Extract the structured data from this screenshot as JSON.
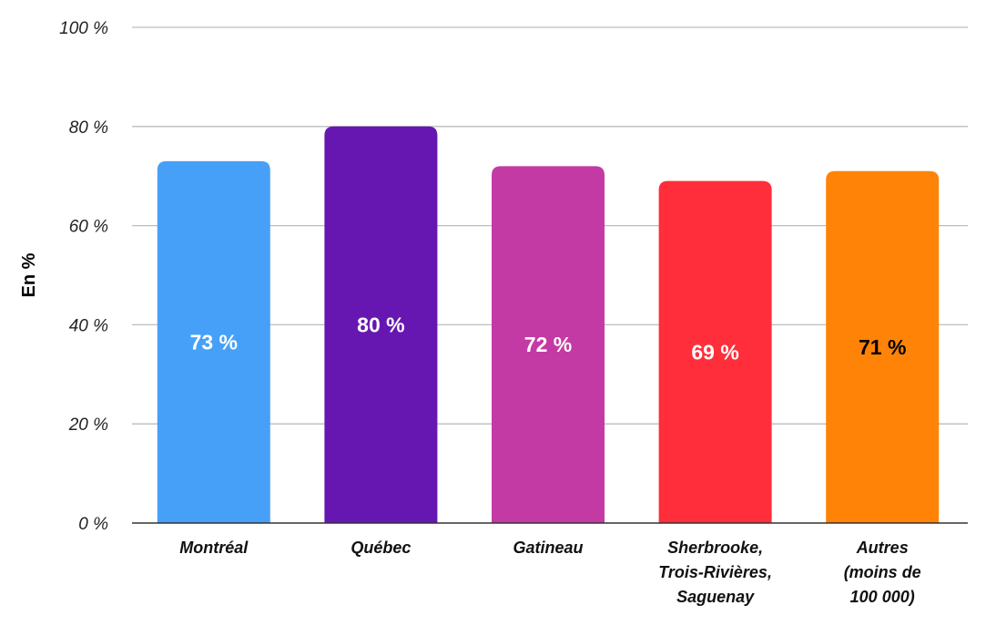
{
  "chart_data": {
    "type": "bar",
    "ylabel": "En %",
    "ylim": [
      0,
      100
    ],
    "yticks": [
      {
        "value": 0,
        "label": "0 %"
      },
      {
        "value": 20,
        "label": "20 %"
      },
      {
        "value": 40,
        "label": "40 %"
      },
      {
        "value": 60,
        "label": "60 %"
      },
      {
        "value": 80,
        "label": "80 %"
      },
      {
        "value": 100,
        "label": "100 %"
      }
    ],
    "grid": true,
    "categories": [
      [
        "Montréal"
      ],
      [
        "Québec"
      ],
      [
        "Gatineau"
      ],
      [
        "Sherbrooke,",
        "Trois-Rivières,",
        "Saguenay"
      ],
      [
        "Autres",
        "(moins de",
        "100 000)"
      ]
    ],
    "values": [
      73,
      80,
      72,
      69,
      71
    ],
    "data_labels": [
      "73 %",
      "80 %",
      "72 %",
      "69 %",
      "71 %"
    ],
    "colors": [
      "#47a0f7",
      "#6617b2",
      "#c43aa5",
      "#ff2e3a",
      "#ff8306"
    ],
    "label_colors": [
      "#ffffff",
      "#ffffff",
      "#ffffff",
      "#ffffff",
      "#000000"
    ]
  }
}
